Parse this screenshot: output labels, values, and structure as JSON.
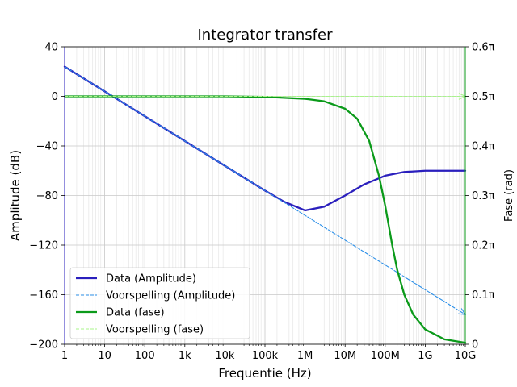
{
  "chart_data": {
    "type": "line",
    "title": "Integrator transfer",
    "xlabel": "Frequentie (Hz)",
    "ylabel_left": "Amplitude (dB)",
    "ylabel_right": "Fase (rad)",
    "xscale": "log",
    "xlim": [
      1,
      10000000000
    ],
    "ylim_left": [
      -200,
      40
    ],
    "ylim_right": [
      0,
      0.6
    ],
    "grid": true,
    "legend_position": "lower-left",
    "x_ticks": [
      {
        "value": 1,
        "label": "1"
      },
      {
        "value": 10,
        "label": "10"
      },
      {
        "value": 100,
        "label": "100"
      },
      {
        "value": 1000,
        "label": "1k"
      },
      {
        "value": 10000,
        "label": "10k"
      },
      {
        "value": 100000,
        "label": "100k"
      },
      {
        "value": 1000000,
        "label": "1M"
      },
      {
        "value": 10000000,
        "label": "10M"
      },
      {
        "value": 100000000,
        "label": "100M"
      },
      {
        "value": 1000000000,
        "label": "1G"
      },
      {
        "value": 10000000000,
        "label": "10G"
      }
    ],
    "y_left_ticks": [
      {
        "value": 40,
        "label": "40"
      },
      {
        "value": 0,
        "label": "0"
      },
      {
        "value": -40,
        "label": "−40"
      },
      {
        "value": -80,
        "label": "−80"
      },
      {
        "value": -120,
        "label": "−120"
      },
      {
        "value": -160,
        "label": "−160"
      },
      {
        "value": -200,
        "label": "−200"
      }
    ],
    "y_right_ticks": [
      {
        "value": 0.6,
        "label": "0.6π"
      },
      {
        "value": 0.5,
        "label": "0.5π"
      },
      {
        "value": 0.4,
        "label": "0.4π"
      },
      {
        "value": 0.3,
        "label": "0.3π"
      },
      {
        "value": 0.2,
        "label": "0.2π"
      },
      {
        "value": 0.1,
        "label": "0.1π"
      },
      {
        "value": 0,
        "label": "0"
      }
    ],
    "series": [
      {
        "name": "Data (Amplitude)",
        "axis": "left",
        "color": "#2a1fbd",
        "style": "solid",
        "x": [
          1,
          10,
          100,
          1000,
          10000,
          100000,
          300000,
          1000000,
          3000000,
          10000000,
          30000000,
          100000000,
          300000000,
          1000000000,
          10000000000
        ],
        "y": [
          24,
          4,
          -16,
          -36,
          -56,
          -76,
          -85,
          -92,
          -89,
          -80,
          -71,
          -64,
          -61,
          -60,
          -60
        ]
      },
      {
        "name": "Voorspelling (Amplitude)",
        "axis": "left",
        "color": "#2b8fe8",
        "style": "dashed",
        "arrow": true,
        "x": [
          1,
          10,
          100,
          1000,
          10000,
          100000,
          1000000,
          10000000,
          100000000,
          1000000000,
          10000000000
        ],
        "y": [
          24,
          4,
          -16,
          -36,
          -56,
          -76,
          -96,
          -116,
          -136,
          -156,
          -176
        ]
      },
      {
        "name": "Data (fase)",
        "axis": "right",
        "color": "#0b9a1a",
        "style": "solid",
        "x": [
          1,
          10,
          100,
          1000,
          10000,
          100000,
          300000,
          1000000,
          3000000,
          10000000,
          20000000,
          40000000,
          70000000,
          100000000,
          150000000,
          200000000,
          300000000,
          500000000,
          1000000000,
          3000000000,
          10000000000
        ],
        "y": [
          0.5,
          0.5,
          0.5,
          0.5,
          0.5,
          0.499,
          0.497,
          0.495,
          0.49,
          0.475,
          0.455,
          0.41,
          0.34,
          0.28,
          0.2,
          0.15,
          0.1,
          0.06,
          0.03,
          0.01,
          0.003
        ]
      },
      {
        "name": "Voorspelling (fase)",
        "axis": "right",
        "color": "#a8f58a",
        "style": "dashed",
        "arrow": true,
        "x": [
          1,
          10000000000
        ],
        "y": [
          0.5,
          0.5
        ]
      }
    ]
  }
}
